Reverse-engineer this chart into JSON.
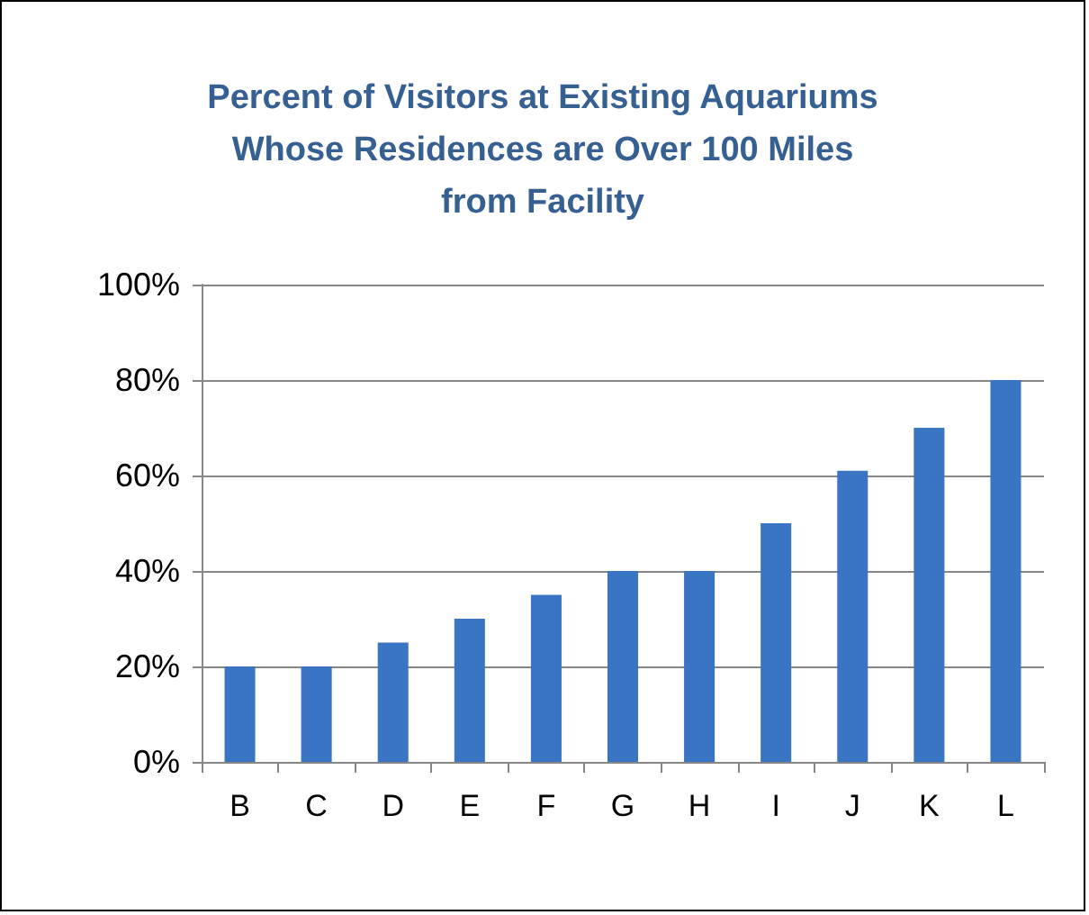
{
  "chart_data": {
    "type": "bar",
    "title": "Percent of Visitors at Existing Aquariums\nWhose Residences are Over 100 Miles\nfrom Facility",
    "categories": [
      "B",
      "C",
      "D",
      "E",
      "F",
      "G",
      "H",
      "I",
      "J",
      "K",
      "L"
    ],
    "values": [
      20,
      20,
      25,
      30,
      35,
      40,
      40,
      50,
      61,
      70,
      80
    ],
    "color": "#3a75c4",
    "ylim": [
      0,
      100
    ],
    "yticks": [
      {
        "value": 0,
        "label": "0%"
      },
      {
        "value": 20,
        "label": "20%"
      },
      {
        "value": 40,
        "label": "40%"
      },
      {
        "value": 60,
        "label": "60%"
      },
      {
        "value": 80,
        "label": "80%"
      },
      {
        "value": 100,
        "label": "100%"
      }
    ],
    "grid": "y"
  }
}
